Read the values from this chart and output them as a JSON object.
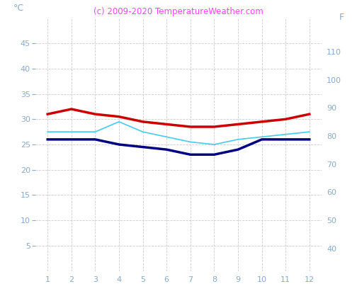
{
  "months": [
    1,
    2,
    3,
    4,
    5,
    6,
    7,
    8,
    9,
    10,
    11,
    12
  ],
  "temp_max": [
    31.0,
    32.0,
    31.0,
    30.5,
    29.5,
    29.0,
    28.5,
    28.5,
    29.0,
    29.5,
    30.0,
    31.0
  ],
  "temp_avg": [
    27.5,
    27.5,
    27.5,
    29.5,
    27.5,
    26.5,
    25.5,
    25.0,
    26.0,
    26.5,
    27.0,
    27.5
  ],
  "temp_min": [
    26.0,
    26.0,
    26.0,
    25.0,
    24.5,
    24.0,
    23.0,
    23.0,
    24.0,
    26.0,
    26.0,
    26.0
  ],
  "color_max": "#cc0000",
  "color_avg": "#44ccee",
  "color_min": "#000080",
  "color_axis": "#88aacc",
  "color_grid": "#cccccc",
  "color_background": "#ffffff",
  "color_title": "#ff44ff",
  "title": "(c) 2009-2020 TemperatureWeather.com",
  "ylabel_left": "°C",
  "ylabel_right": "F",
  "ylim_left": [
    0,
    50
  ],
  "ylim_right": [
    32,
    122
  ],
  "yticks_left": [
    5,
    10,
    15,
    20,
    25,
    30,
    35,
    40,
    45
  ],
  "yticks_right": [
    40,
    50,
    60,
    70,
    80,
    90,
    100,
    110
  ],
  "xticks": [
    1,
    2,
    3,
    4,
    5,
    6,
    7,
    8,
    9,
    10,
    11,
    12
  ],
  "linewidth_max": 2.5,
  "linewidth_avg": 1.2,
  "linewidth_min": 2.5,
  "title_fontsize": 8.5,
  "tick_fontsize": 8
}
